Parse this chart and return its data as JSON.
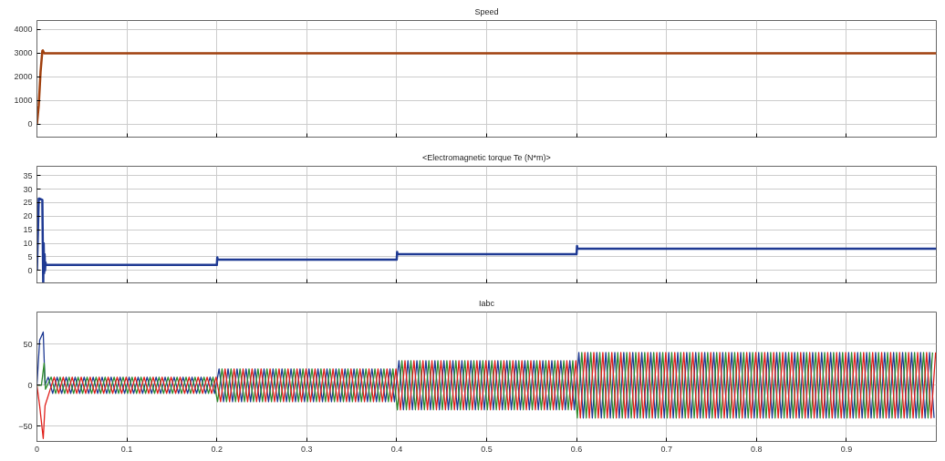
{
  "chart_data": [
    {
      "type": "line",
      "title": "Speed",
      "xlim": [
        0,
        1
      ],
      "ylim": [
        -540,
        4380
      ],
      "xticks": [
        0,
        0.1,
        0.2,
        0.3,
        0.4,
        0.5,
        0.6,
        0.7,
        0.8,
        0.9
      ],
      "yticks": [
        0,
        1000,
        2000,
        3000,
        4000
      ],
      "tick_labels": "y",
      "grid": true,
      "line_style": "solid",
      "series": [
        {
          "color": "#a0400e",
          "x": [
            0,
            0.002,
            0.004,
            0.006,
            0.0065,
            0.008,
            0.01,
            1
          ],
          "values": [
            0,
            800,
            2200,
            3100,
            3120,
            3000,
            3000,
            3000
          ]
        }
      ]
    },
    {
      "type": "line",
      "title": "<Electromagnetic torque Te (N*m)>",
      "xlim": [
        0,
        1
      ],
      "ylim": [
        -4.6,
        38.4
      ],
      "xticks": [
        0,
        0.1,
        0.2,
        0.3,
        0.4,
        0.5,
        0.6,
        0.7,
        0.8,
        0.9
      ],
      "yticks": [
        0,
        5,
        10,
        15,
        20,
        25,
        30,
        35
      ],
      "tick_labels": "y",
      "grid": true,
      "line_style": "solid",
      "series": [
        {
          "color": "#1f3a93",
          "x": [
            0,
            0.002,
            0.0025,
            0.006,
            0.0065,
            0.007,
            0.0075,
            0.008,
            0.0085,
            0.009,
            0.0095,
            0.01,
            0.2,
            0.2005,
            0.201,
            0.4,
            0.4005,
            0.401,
            0.6,
            0.6005,
            0.601,
            1
          ],
          "values": [
            0,
            26.5,
            26.5,
            26,
            10,
            -4.5,
            10,
            -1,
            6,
            0,
            3,
            2,
            2,
            4.8,
            4,
            4,
            6.8,
            6,
            6,
            9,
            8,
            8
          ]
        }
      ]
    },
    {
      "type": "line",
      "title": "Iabc",
      "xlim": [
        0,
        1
      ],
      "ylim": [
        -68.6,
        89.4
      ],
      "xticks": [
        0,
        0.1,
        0.2,
        0.3,
        0.4,
        0.5,
        0.6,
        0.7,
        0.8,
        0.9
      ],
      "yticks": [
        -50,
        0,
        50
      ],
      "grid": true,
      "line_style": "solid",
      "series": [
        {
          "color": "#1f3a93",
          "x": [
            0,
            0.003,
            0.007,
            0.009,
            0.0125,
            0.0175,
            0.0225,
            0.0275,
            0.0325,
            0.0375,
            0.0425,
            0.0475,
            0.0525,
            0.0575,
            0.0625,
            0.0675,
            0.0725,
            0.0775,
            0.0825,
            0.0875,
            0.0925,
            0.0975,
            0.1025,
            0.1075,
            0.1125,
            0.1175,
            0.1225,
            0.1275,
            0.1325,
            0.1375,
            0.1425,
            0.1475,
            0.1525,
            0.1575,
            0.1625,
            0.1675,
            0.1725,
            0.1775,
            0.1825,
            0.1875,
            0.1925,
            0.1975,
            0.2025,
            0.2075,
            0.2125,
            0.2175,
            0.2225,
            0.2275,
            0.2325,
            0.2375,
            0.2425,
            0.2475,
            0.2525,
            0.2575,
            0.2625,
            0.2675,
            0.2725,
            0.2775,
            0.2825,
            0.2875,
            0.2925,
            0.2975,
            0.3025,
            0.3075,
            0.3125,
            0.3175,
            0.3225,
            0.3275,
            0.3325,
            0.3375,
            0.3425,
            0.3475,
            0.3525,
            0.3575,
            0.3625,
            0.3675,
            0.3725,
            0.3775,
            0.3825,
            0.3875,
            0.3925,
            0.3975,
            0.4025,
            0.4075,
            0.4125,
            0.4175,
            0.4225,
            0.4275,
            0.4325,
            0.4375,
            0.4425,
            0.4475,
            0.4525,
            0.4575,
            0.4625,
            0.4675,
            0.4725,
            0.4775,
            0.4825,
            0.4875,
            0.4925,
            0.4975,
            0.5025,
            0.5075,
            0.5125,
            0.5175,
            0.5225,
            0.5275,
            0.5325,
            0.5375,
            0.5425,
            0.5475,
            0.5525,
            0.5575,
            0.5625,
            0.5675,
            0.5725,
            0.5775,
            0.5825,
            0.5875,
            0.5925,
            0.5975,
            0.6025,
            0.6075,
            0.6125,
            0.6175,
            0.6225,
            0.6275,
            0.6325,
            0.6375,
            0.6425,
            0.6475,
            0.6525,
            0.6575,
            0.6625,
            0.6675,
            0.6725,
            0.6775,
            0.6825,
            0.6875,
            0.6925,
            0.6975,
            0.7025,
            0.7075,
            0.7125,
            0.7175,
            0.7225,
            0.7275,
            0.7325,
            0.7375,
            0.7425,
            0.7475,
            0.7525,
            0.7575,
            0.7625,
            0.7675,
            0.7725,
            0.7775,
            0.7825,
            0.7875,
            0.7925,
            0.7975,
            0.8025,
            0.8075,
            0.8125,
            0.8175,
            0.8225,
            0.8275,
            0.8325,
            0.8375,
            0.8425,
            0.8475,
            0.8525,
            0.8575,
            0.8625,
            0.8675,
            0.8725,
            0.8775,
            0.8825,
            0.8875,
            0.8925,
            0.8975,
            0.9025,
            0.9075,
            0.9125,
            0.9175,
            0.9225,
            0.9275,
            0.9325,
            0.9375,
            0.9425,
            0.9475,
            0.9525,
            0.9575,
            0.9625,
            0.9675,
            0.9725,
            0.9775,
            0.9825,
            0.9875,
            0.9925,
            0.9975
          ],
          "values": [
            0,
            55,
            65,
            0,
            10,
            -10,
            10,
            -10,
            10,
            -10,
            10,
            -10,
            10,
            -10,
            10,
            -10,
            10,
            -10,
            10,
            -10,
            10,
            -10,
            10,
            -10,
            10,
            -10,
            10,
            -10,
            10,
            -10,
            10,
            -10,
            10,
            -10,
            10,
            -10,
            10,
            -10,
            10,
            -10,
            10,
            -10,
            20,
            -20,
            20,
            -20,
            20,
            -20,
            20,
            -20,
            20,
            -20,
            20,
            -20,
            20,
            -20,
            20,
            -20,
            20,
            -20,
            20,
            -20,
            20,
            -20,
            20,
            -20,
            20,
            -20,
            20,
            -20,
            20,
            -20,
            20,
            -20,
            20,
            -20,
            20,
            -20,
            20,
            -20,
            20,
            -20,
            30,
            -30,
            30,
            -30,
            30,
            -30,
            30,
            -30,
            30,
            -30,
            30,
            -30,
            30,
            -30,
            30,
            -30,
            30,
            -30,
            30,
            -30,
            30,
            -30,
            30,
            -30,
            30,
            -30,
            30,
            -30,
            30,
            -30,
            30,
            -30,
            30,
            -30,
            30,
            -30,
            30,
            -30,
            30,
            -30,
            40,
            -40,
            40,
            -40,
            40,
            -40,
            40,
            -40,
            40,
            -40,
            40,
            -40,
            40,
            -40,
            40,
            -40,
            40,
            -40,
            40,
            -40,
            40,
            -40,
            40,
            -40,
            40,
            -40,
            40,
            -40,
            40,
            -40,
            40,
            -40,
            40,
            -40,
            40,
            -40,
            40,
            -40,
            40,
            -40,
            40,
            -40,
            40,
            -40,
            40,
            -40,
            40,
            -40,
            40,
            -40,
            40,
            -40,
            40,
            -40,
            40,
            -40,
            40,
            -40,
            40,
            -40,
            40,
            -40,
            40,
            -40,
            40,
            -40,
            40,
            -40,
            40,
            -40,
            40,
            -40,
            40,
            -40,
            40,
            -40,
            40,
            -40,
            40,
            -40
          ]
        },
        {
          "color": "#2e8b2e",
          "x": [
            0,
            0.005,
            0.008,
            0.0095,
            0.0158,
            0.0208,
            0.0258,
            0.0308,
            0.0358,
            0.0408,
            0.0458,
            0.0508,
            0.0558,
            0.0608,
            0.0658,
            0.0708,
            0.0758,
            0.0808,
            0.0858,
            0.0908,
            0.0958,
            0.1008,
            0.1058,
            0.1108,
            0.1158,
            0.1208,
            0.1258,
            0.1308,
            0.1358,
            0.1408,
            0.1458,
            0.1508,
            0.1558,
            0.1608,
            0.1658,
            0.1708,
            0.1758,
            0.1808,
            0.1858,
            0.1908,
            0.1958,
            0.2008,
            0.2058,
            0.2108,
            0.2158,
            0.2208,
            0.2258,
            0.2308,
            0.2358,
            0.2408,
            0.2458,
            0.2508,
            0.2558,
            0.2608,
            0.2658,
            0.2708,
            0.2758,
            0.2808,
            0.2858,
            0.2908,
            0.2958,
            0.3008,
            0.3058,
            0.3108,
            0.3158,
            0.3208,
            0.3258,
            0.3308,
            0.3358,
            0.3408,
            0.3458,
            0.3508,
            0.3558,
            0.3608,
            0.3658,
            0.3708,
            0.3758,
            0.3808,
            0.3858,
            0.3908,
            0.3958,
            0.4008,
            0.4058,
            0.4108,
            0.4158,
            0.4208,
            0.4258,
            0.4308,
            0.4358,
            0.4408,
            0.4458,
            0.4508,
            0.4558,
            0.4608,
            0.4658,
            0.4708,
            0.4758,
            0.4808,
            0.4858,
            0.4908,
            0.4958,
            0.5008,
            0.5058,
            0.5108,
            0.5158,
            0.5208,
            0.5258,
            0.5308,
            0.5358,
            0.5408,
            0.5458,
            0.5508,
            0.5558,
            0.5608,
            0.5658,
            0.5708,
            0.5758,
            0.5808,
            0.5858,
            0.5908,
            0.5958,
            0.6008,
            0.6058,
            0.6108,
            0.6158,
            0.6208,
            0.6258,
            0.6308,
            0.6358,
            0.6408,
            0.6458,
            0.6508,
            0.6558,
            0.6608,
            0.6658,
            0.6708,
            0.6758,
            0.6808,
            0.6858,
            0.6908,
            0.6958,
            0.7008,
            0.7058,
            0.7108,
            0.7158,
            0.7208,
            0.7258,
            0.7308,
            0.7358,
            0.7408,
            0.7458,
            0.7508,
            0.7558,
            0.7608,
            0.7658,
            0.7708,
            0.7758,
            0.7808,
            0.7858,
            0.7908,
            0.7958,
            0.8008,
            0.8058,
            0.8108,
            0.8158,
            0.8208,
            0.8258,
            0.8308,
            0.8358,
            0.8408,
            0.8458,
            0.8508,
            0.8558,
            0.8608,
            0.8658,
            0.8708,
            0.8758,
            0.8808,
            0.8858,
            0.8908,
            0.8958,
            0.9008,
            0.9058,
            0.9108,
            0.9158,
            0.9208,
            0.9258,
            0.9308,
            0.9358,
            0.9408,
            0.9458,
            0.9508,
            0.9558,
            0.9608,
            0.9658,
            0.9708,
            0.9758,
            0.9808,
            0.9858,
            0.9908,
            0.9958
          ],
          "values": [
            0,
            0,
            27,
            -5,
            10,
            -10,
            10,
            -10,
            10,
            -10,
            10,
            -10,
            10,
            -10,
            10,
            -10,
            10,
            -10,
            10,
            -10,
            10,
            -10,
            10,
            -10,
            10,
            -10,
            10,
            -10,
            10,
            -10,
            10,
            -10,
            10,
            -10,
            10,
            -10,
            10,
            -10,
            10,
            -10,
            10,
            -20,
            20,
            -20,
            20,
            -20,
            20,
            -20,
            20,
            -20,
            20,
            -20,
            20,
            -20,
            20,
            -20,
            20,
            -20,
            20,
            -20,
            20,
            -20,
            20,
            -20,
            20,
            -20,
            20,
            -20,
            20,
            -20,
            20,
            -20,
            20,
            -20,
            20,
            -20,
            20,
            -20,
            20,
            -20,
            20,
            -30,
            30,
            -30,
            30,
            -30,
            30,
            -30,
            30,
            -30,
            30,
            -30,
            30,
            -30,
            30,
            -30,
            30,
            -30,
            30,
            -30,
            30,
            -30,
            30,
            -30,
            30,
            -30,
            30,
            -30,
            30,
            -30,
            30,
            -30,
            30,
            -30,
            30,
            -30,
            30,
            -30,
            30,
            -30,
            30,
            -40,
            40,
            -40,
            40,
            -40,
            40,
            -40,
            40,
            -40,
            40,
            -40,
            40,
            -40,
            40,
            -40,
            40,
            -40,
            40,
            -40,
            40,
            -40,
            40,
            -40,
            40,
            -40,
            40,
            -40,
            40,
            -40,
            40,
            -40,
            40,
            -40,
            40,
            -40,
            40,
            -40,
            40,
            -40,
            40,
            -40,
            40,
            -40,
            40,
            -40,
            40,
            -40,
            40,
            -40,
            40,
            -40,
            40,
            -40,
            40,
            -40,
            40,
            -40,
            40,
            -40,
            40,
            -40,
            40,
            -40,
            40,
            -40,
            40,
            -40,
            40,
            -40,
            40,
            -40,
            40,
            -40,
            40,
            -40,
            40,
            -40,
            40,
            -40,
            40
          ]
        },
        {
          "color": "#e0201b",
          "x": [
            0,
            0.003,
            0.007,
            0.009,
            0.0192,
            0.0242,
            0.0292,
            0.0342,
            0.0392,
            0.0442,
            0.0492,
            0.0542,
            0.0592,
            0.0642,
            0.0692,
            0.0742,
            0.0792,
            0.0842,
            0.0892,
            0.0942,
            0.0992,
            0.1042,
            0.1092,
            0.1142,
            0.1192,
            0.1242,
            0.1292,
            0.1342,
            0.1392,
            0.1442,
            0.1492,
            0.1542,
            0.1592,
            0.1642,
            0.1692,
            0.1742,
            0.1792,
            0.1842,
            0.1892,
            0.1942,
            0.1992,
            0.2042,
            0.2092,
            0.2142,
            0.2192,
            0.2242,
            0.2292,
            0.2342,
            0.2392,
            0.2442,
            0.2492,
            0.2542,
            0.2592,
            0.2642,
            0.2692,
            0.2742,
            0.2792,
            0.2842,
            0.2892,
            0.2942,
            0.2992,
            0.3042,
            0.3092,
            0.3142,
            0.3192,
            0.3242,
            0.3292,
            0.3342,
            0.3392,
            0.3442,
            0.3492,
            0.3542,
            0.3592,
            0.3642,
            0.3692,
            0.3742,
            0.3792,
            0.3842,
            0.3892,
            0.3942,
            0.3992,
            0.4042,
            0.4092,
            0.4142,
            0.4192,
            0.4242,
            0.4292,
            0.4342,
            0.4392,
            0.4442,
            0.4492,
            0.4542,
            0.4592,
            0.4642,
            0.4692,
            0.4742,
            0.4792,
            0.4842,
            0.4892,
            0.4942,
            0.4992,
            0.5042,
            0.5092,
            0.5142,
            0.5192,
            0.5242,
            0.5292,
            0.5342,
            0.5392,
            0.5442,
            0.5492,
            0.5542,
            0.5592,
            0.5642,
            0.5692,
            0.5742,
            0.5792,
            0.5842,
            0.5892,
            0.5942,
            0.5992,
            0.6042,
            0.6092,
            0.6142,
            0.6192,
            0.6242,
            0.6292,
            0.6342,
            0.6392,
            0.6442,
            0.6492,
            0.6542,
            0.6592,
            0.6642,
            0.6692,
            0.6742,
            0.6792,
            0.6842,
            0.6892,
            0.6942,
            0.6992,
            0.7042,
            0.7092,
            0.7142,
            0.7192,
            0.7242,
            0.7292,
            0.7342,
            0.7392,
            0.7442,
            0.7492,
            0.7542,
            0.7592,
            0.7642,
            0.7692,
            0.7742,
            0.7792,
            0.7842,
            0.7892,
            0.7942,
            0.7992,
            0.8042,
            0.8092,
            0.8142,
            0.8192,
            0.8242,
            0.8292,
            0.8342,
            0.8392,
            0.8442,
            0.8492,
            0.8542,
            0.8592,
            0.8642,
            0.8692,
            0.8742,
            0.8792,
            0.8842,
            0.8892,
            0.8942,
            0.8992,
            0.9042,
            0.9092,
            0.9142,
            0.9192,
            0.9242,
            0.9292,
            0.9342,
            0.9392,
            0.9442,
            0.9492,
            0.9542,
            0.9592,
            0.9642,
            0.9692,
            0.9742,
            0.9792,
            0.9842,
            0.9892,
            0.9942,
            0.9992
          ],
          "values": [
            0,
            -25,
            -65,
            -25,
            10,
            -10,
            10,
            -10,
            10,
            -10,
            10,
            -10,
            10,
            -10,
            10,
            -10,
            10,
            -10,
            10,
            -10,
            10,
            -10,
            10,
            -10,
            10,
            -10,
            10,
            -10,
            10,
            -10,
            10,
            -10,
            10,
            -10,
            10,
            -10,
            10,
            -10,
            10,
            -10,
            10,
            -20,
            20,
            -20,
            20,
            -20,
            20,
            -20,
            20,
            -20,
            20,
            -20,
            20,
            -20,
            20,
            -20,
            20,
            -20,
            20,
            -20,
            20,
            -20,
            20,
            -20,
            20,
            -20,
            20,
            -20,
            20,
            -20,
            20,
            -20,
            20,
            -20,
            20,
            -20,
            20,
            -20,
            20,
            -20,
            20,
            -30,
            30,
            -30,
            30,
            -30,
            30,
            -30,
            30,
            -30,
            30,
            -30,
            30,
            -30,
            30,
            -30,
            30,
            -30,
            30,
            -30,
            30,
            -30,
            30,
            -30,
            30,
            -30,
            30,
            -30,
            30,
            -30,
            30,
            -30,
            30,
            -30,
            30,
            -30,
            30,
            -30,
            30,
            -30,
            30,
            -40,
            40,
            -40,
            40,
            -40,
            40,
            -40,
            40,
            -40,
            40,
            -40,
            40,
            -40,
            40,
            -40,
            40,
            -40,
            40,
            -40,
            40,
            -40,
            40,
            -40,
            40,
            -40,
            40,
            -40,
            40,
            -40,
            40,
            -40,
            40,
            -40,
            40,
            -40,
            40,
            -40,
            40,
            -40,
            40,
            -40,
            40,
            -40,
            40,
            -40,
            40,
            -40,
            40,
            -40,
            40,
            -40,
            40,
            -40,
            40,
            -40,
            40,
            -40,
            40,
            -40,
            40,
            -40,
            40,
            -40,
            40,
            -40,
            40,
            -40,
            40,
            -40,
            40,
            -40,
            40,
            -40,
            40,
            -40,
            40,
            -40,
            40,
            -40,
            40
          ]
        }
      ]
    }
  ]
}
